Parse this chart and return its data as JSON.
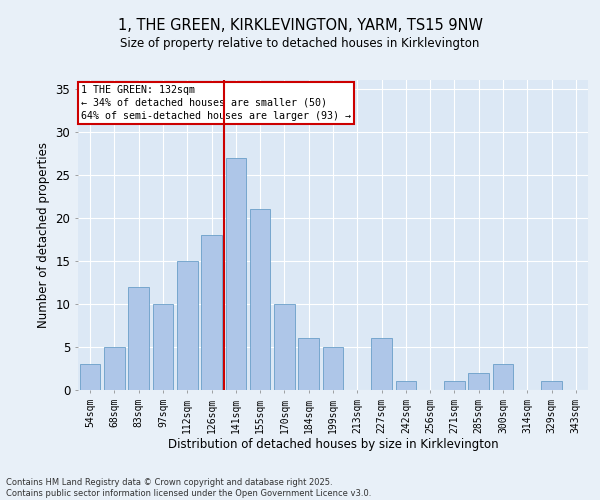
{
  "title_line1": "1, THE GREEN, KIRKLEVINGTON, YARM, TS15 9NW",
  "title_line2": "Size of property relative to detached houses in Kirklevington",
  "xlabel": "Distribution of detached houses by size in Kirklevington",
  "ylabel": "Number of detached properties",
  "categories": [
    "54sqm",
    "68sqm",
    "83sqm",
    "97sqm",
    "112sqm",
    "126sqm",
    "141sqm",
    "155sqm",
    "170sqm",
    "184sqm",
    "199sqm",
    "213sqm",
    "227sqm",
    "242sqm",
    "256sqm",
    "271sqm",
    "285sqm",
    "300sqm",
    "314sqm",
    "329sqm",
    "343sqm"
  ],
  "values": [
    3,
    5,
    12,
    10,
    15,
    18,
    27,
    21,
    10,
    6,
    5,
    0,
    6,
    1,
    0,
    1,
    2,
    3,
    0,
    1,
    0
  ],
  "bar_color": "#aec6e8",
  "bar_edge_color": "#6a9fc8",
  "vline_x": 6,
  "vline_color": "#cc0000",
  "annotation_title": "1 THE GREEN: 132sqm",
  "annotation_line2": "← 34% of detached houses are smaller (50)",
  "annotation_line3": "64% of semi-detached houses are larger (93) →",
  "annotation_box_color": "#cc0000",
  "ylim": [
    0,
    36
  ],
  "yticks": [
    0,
    5,
    10,
    15,
    20,
    25,
    30,
    35
  ],
  "footer": "Contains HM Land Registry data © Crown copyright and database right 2025.\nContains public sector information licensed under the Open Government Licence v3.0.",
  "background_color": "#e8f0f8",
  "plot_bg_color": "#dce8f5"
}
